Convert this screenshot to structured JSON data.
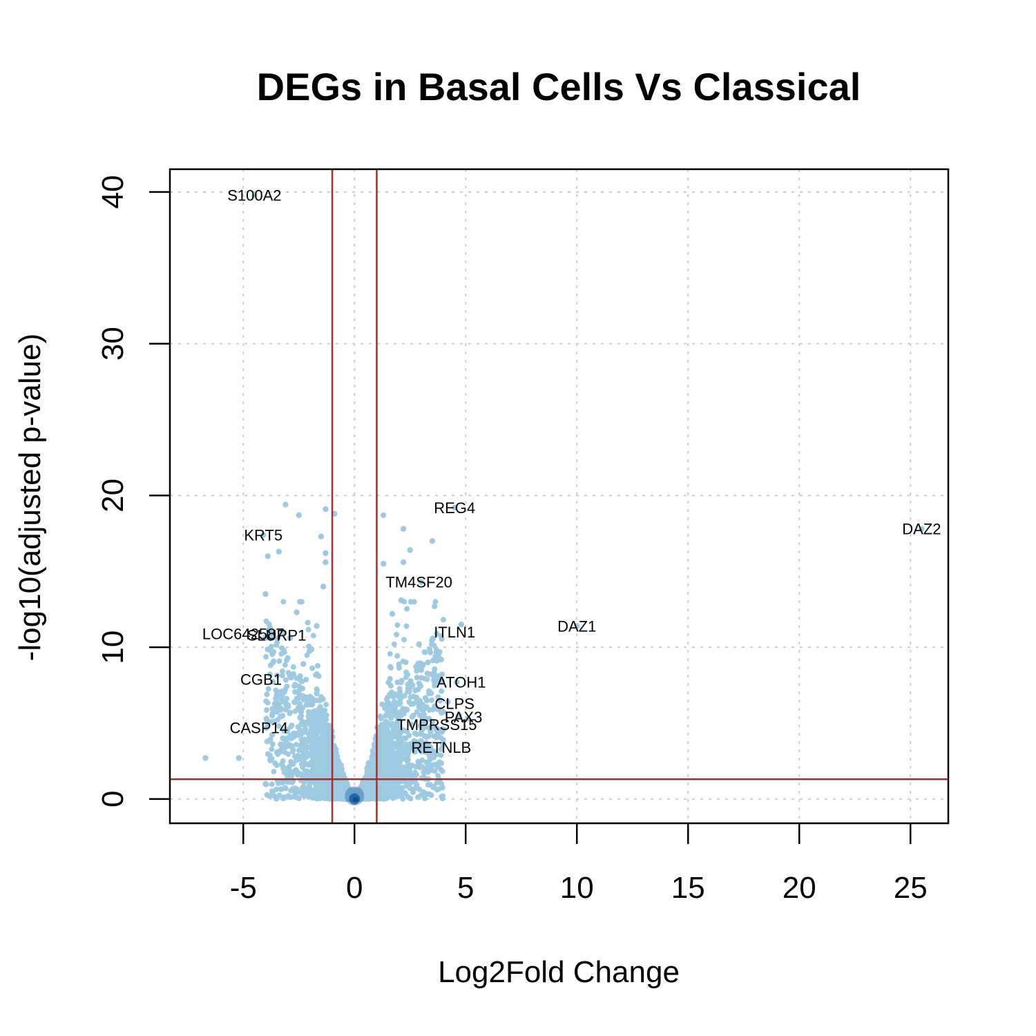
{
  "chart_data": {
    "type": "scatter",
    "title": "DEGs in Basal Cells Vs Classical",
    "xlabel": "Log2Fold Change",
    "ylabel": "-log10(adjusted p-value)",
    "xlim": [
      -8.3,
      26.7
    ],
    "ylim": [
      -1.6,
      41.5
    ],
    "xticks": [
      -5,
      0,
      5,
      10,
      15,
      20,
      25
    ],
    "yticks": [
      0,
      10,
      20,
      30,
      40
    ],
    "grid": true,
    "point_color": "#9ecae1",
    "dense_color": "#08519c",
    "threshold_color": "#a0302d",
    "thresholds": {
      "x": [
        -1,
        1
      ],
      "y": 1.3
    },
    "labeled_genes": [
      {
        "name": "S100A2",
        "x": -4.5,
        "y": 39.8
      },
      {
        "name": "REG4",
        "x": 4.5,
        "y": 19.2
      },
      {
        "name": "KRT5",
        "x": -4.1,
        "y": 17.4
      },
      {
        "name": "DAZ2",
        "x": 25.5,
        "y": 17.8
      },
      {
        "name": "TM4SF20",
        "x": 2.9,
        "y": 14.3
      },
      {
        "name": "DAZ1",
        "x": 10.0,
        "y": 11.4
      },
      {
        "name": "LOC642587",
        "x": -5.0,
        "y": 10.9
      },
      {
        "name": "SLURP1",
        "x": -3.5,
        "y": 10.8
      },
      {
        "name": "ITLN1",
        "x": 4.5,
        "y": 11.0
      },
      {
        "name": "CGB1",
        "x": -4.2,
        "y": 7.9
      },
      {
        "name": "ATOH1",
        "x": 4.8,
        "y": 7.7
      },
      {
        "name": "CLPS",
        "x": 4.5,
        "y": 6.3
      },
      {
        "name": "PAX3",
        "x": 4.9,
        "y": 5.4
      },
      {
        "name": "TMPRSS15",
        "x": 3.7,
        "y": 4.9
      },
      {
        "name": "CASP14",
        "x": -4.3,
        "y": 4.7
      },
      {
        "name": "RETNLB",
        "x": 3.9,
        "y": 3.4
      }
    ],
    "scattered_points": [
      [
        -6.7,
        2.7
      ],
      [
        -5.2,
        2.7
      ],
      [
        -4.0,
        1.0
      ],
      [
        -3.9,
        3.8
      ],
      [
        -3.7,
        5.5
      ],
      [
        -3.1,
        19.4
      ],
      [
        -2.5,
        18.7
      ],
      [
        -4.0,
        13.5
      ],
      [
        -3.4,
        16.3
      ],
      [
        -3.9,
        16.0
      ],
      [
        -1.5,
        17.3
      ],
      [
        -1.3,
        19.1
      ],
      [
        -1.3,
        16.2
      ],
      [
        -0.9,
        18.8
      ],
      [
        -1.3,
        15.6
      ],
      [
        -1.4,
        14.0
      ],
      [
        -3.2,
        11.0
      ],
      [
        -2.9,
        10.6
      ],
      [
        -3.8,
        11.3
      ],
      [
        -2.6,
        12.3
      ],
      [
        -2.3,
        8.9
      ],
      [
        -1.7,
        11.4
      ],
      [
        1.3,
        18.7
      ],
      [
        2.2,
        17.8
      ],
      [
        3.5,
        17.0
      ],
      [
        2.5,
        16.4
      ],
      [
        2.2,
        15.6
      ],
      [
        1.3,
        15.5
      ],
      [
        3.0,
        14.3
      ],
      [
        2.1,
        13.1
      ],
      [
        3.6,
        12.7
      ],
      [
        1.7,
        12.2
      ],
      [
        2.9,
        10.2
      ],
      [
        4.8,
        11.5
      ],
      [
        10.0,
        11.4
      ],
      [
        25.5,
        17.8
      ],
      [
        4.5,
        19.2
      ],
      [
        -4.1,
        17.4
      ],
      [
        -4.5,
        39.8
      ],
      [
        3.3,
        9.0
      ],
      [
        3.0,
        8.5
      ],
      [
        4.6,
        7.7
      ],
      [
        4.2,
        6.4
      ],
      [
        3.6,
        6.1
      ],
      [
        4.7,
        5.5
      ],
      [
        5.1,
        5.3
      ],
      [
        3.1,
        4.9
      ],
      [
        4.0,
        4.6
      ],
      [
        3.0,
        3.4
      ],
      [
        3.3,
        2.1
      ],
      [
        -2.3,
        3.3
      ],
      [
        -2.7,
        4.3
      ],
      [
        -3.6,
        5.1
      ],
      [
        -3.3,
        3.6
      ],
      [
        -2.0,
        1.2
      ]
    ]
  }
}
